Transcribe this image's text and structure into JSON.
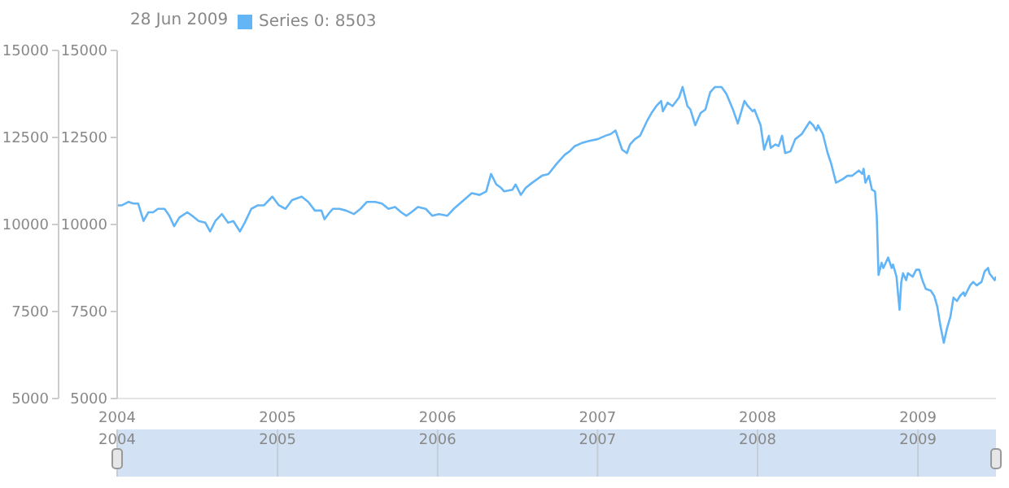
{
  "chart_data": {
    "type": "line",
    "legend_title": "28 Jun 2009",
    "legend": "top left",
    "xlim": [
      "2004-01-01",
      "2009-06-28"
    ],
    "xticks": [
      "2004",
      "2005",
      "2006",
      "2007",
      "2008",
      "2009"
    ],
    "x2lim": [
      "2004-01-01",
      "2009-06-28"
    ],
    "x2ticks": [
      "2004",
      "2005",
      "2006",
      "2007",
      "2008",
      "2009"
    ],
    "ylim": [
      5000,
      15000
    ],
    "yticks": [
      5000,
      7500,
      10000,
      12500,
      15000
    ],
    "y2lim": [
      5000,
      15000
    ],
    "y2ticks": [
      5000,
      7500,
      10000,
      12500,
      15000
    ],
    "x": [
      "2004-01-01",
      "2004-01-12",
      "2004-01-27",
      "2004-02-07",
      "2004-02-18",
      "2004-03-01",
      "2004-03-12",
      "2004-03-23",
      "2004-04-03",
      "2004-04-18",
      "2004-04-29",
      "2004-05-10",
      "2004-05-22",
      "2004-06-09",
      "2004-06-20",
      "2004-07-05",
      "2004-07-20",
      "2004-07-31",
      "2004-08-12",
      "2004-08-27",
      "2004-09-10",
      "2004-09-22",
      "2004-10-07",
      "2004-10-18",
      "2004-11-02",
      "2004-11-17",
      "2004-12-01",
      "2004-12-20",
      "2005-01-04",
      "2005-01-19",
      "2005-02-03",
      "2005-02-25",
      "2005-03-12",
      "2005-03-27",
      "2005-04-11",
      "2005-04-18",
      "2005-04-30",
      "2005-05-07",
      "2005-05-22",
      "2005-06-06",
      "2005-06-24",
      "2005-07-09",
      "2005-07-24",
      "2005-08-12",
      "2005-08-27",
      "2005-09-11",
      "2005-09-26",
      "2005-10-10",
      "2005-10-22",
      "2005-11-02",
      "2005-11-17",
      "2005-12-05",
      "2005-12-20",
      "2006-01-04",
      "2006-01-23",
      "2006-02-07",
      "2006-02-25",
      "2006-03-20",
      "2006-04-07",
      "2006-04-22",
      "2006-05-03",
      "2006-05-15",
      "2006-05-26",
      "2006-06-02",
      "2006-06-21",
      "2006-06-28",
      "2006-07-10",
      "2006-07-21",
      "2006-08-05",
      "2006-08-16",
      "2006-08-27",
      "2006-09-11",
      "2006-09-30",
      "2006-10-18",
      "2006-10-29",
      "2006-11-10",
      "2006-11-28",
      "2006-12-13",
      "2007-01-01",
      "2007-01-19",
      "2007-01-31",
      "2007-02-11",
      "2007-02-26",
      "2007-03-09",
      "2007-03-16",
      "2007-03-27",
      "2007-04-08",
      "2007-04-23",
      "2007-05-04",
      "2007-05-15",
      "2007-05-26",
      "2007-05-30",
      "2007-06-10",
      "2007-06-21",
      "2007-07-06",
      "2007-07-14",
      "2007-07-25",
      "2007-08-01",
      "2007-08-12",
      "2007-08-24",
      "2007-09-04",
      "2007-09-15",
      "2007-09-26",
      "2007-10-11",
      "2007-10-22",
      "2007-11-06",
      "2007-11-17",
      "2007-12-02",
      "2007-12-10",
      "2007-12-21",
      "2007-12-25",
      "2008-01-08",
      "2008-01-16",
      "2008-01-27",
      "2008-01-31",
      "2008-02-11",
      "2008-02-18",
      "2008-02-26",
      "2008-03-04",
      "2008-03-16",
      "2008-03-27",
      "2008-04-11",
      "2008-04-29",
      "2008-05-07",
      "2008-05-14",
      "2008-05-18",
      "2008-05-29",
      "2008-06-09",
      "2008-06-17",
      "2008-06-28",
      "2008-07-13",
      "2008-07-24",
      "2008-08-04",
      "2008-08-19",
      "2008-08-27",
      "2008-08-30",
      "2008-09-03",
      "2008-09-11",
      "2008-09-18",
      "2008-09-25",
      "2008-09-29",
      "2008-10-03",
      "2008-10-10",
      "2008-10-14",
      "2008-10-25",
      "2008-11-02",
      "2008-11-05",
      "2008-11-13",
      "2008-11-20",
      "2008-11-24",
      "2008-11-28",
      "2008-12-05",
      "2008-12-09",
      "2008-12-20",
      "2008-12-28",
      "2009-01-04",
      "2009-01-11",
      "2009-01-19",
      "2009-01-30",
      "2009-02-07",
      "2009-02-14",
      "2009-02-21",
      "2009-03-01",
      "2009-03-08",
      "2009-03-16",
      "2009-03-23",
      "2009-03-31",
      "2009-04-07",
      "2009-04-15",
      "2009-04-18",
      "2009-04-30",
      "2009-05-07",
      "2009-05-15",
      "2009-05-26",
      "2009-06-02",
      "2009-06-10",
      "2009-06-13",
      "2009-06-25",
      "2009-06-28"
    ],
    "series": [
      {
        "name": "Series 0: 8503",
        "color": "#64b5f6",
        "values": [
          10550,
          10550,
          10650,
          10600,
          10600,
          10100,
          10350,
          10350,
          10450,
          10450,
          10250,
          9950,
          10200,
          10350,
          10250,
          10100,
          10050,
          9800,
          10100,
          10300,
          10050,
          10100,
          9800,
          10050,
          10450,
          10550,
          10550,
          10800,
          10550,
          10450,
          10700,
          10800,
          10650,
          10400,
          10400,
          10150,
          10350,
          10450,
          10450,
          10400,
          10300,
          10450,
          10650,
          10650,
          10600,
          10450,
          10500,
          10350,
          10250,
          10350,
          10500,
          10450,
          10250,
          10300,
          10250,
          10450,
          10650,
          10900,
          10850,
          10950,
          11450,
          11150,
          11050,
          10950,
          11000,
          11150,
          10850,
          11050,
          11200,
          11300,
          11400,
          11450,
          11750,
          12000,
          12100,
          12250,
          12350,
          12400,
          12450,
          12550,
          12600,
          12700,
          12150,
          12050,
          12300,
          12450,
          12550,
          12950,
          13200,
          13400,
          13550,
          13250,
          13500,
          13400,
          13650,
          13950,
          13400,
          13300,
          12850,
          13200,
          13300,
          13800,
          13950,
          13950,
          13750,
          13300,
          12900,
          13550,
          13400,
          13250,
          13300,
          12850,
          12150,
          12550,
          12200,
          12300,
          12250,
          12550,
          12050,
          12100,
          12450,
          12600,
          12950,
          12850,
          12700,
          12850,
          12600,
          12050,
          11750,
          11200,
          11300,
          11400,
          11400,
          11550,
          11450,
          11600,
          11200,
          11400,
          11000,
          10950,
          10250,
          8550,
          8900,
          8750,
          9050,
          8750,
          8850,
          8500,
          7550,
          8350,
          8600,
          8400,
          8600,
          8500,
          8700,
          8700,
          8400,
          8150,
          8100,
          7950,
          7650,
          7100,
          6600,
          7000,
          7350,
          7900,
          7800,
          7950,
          8050,
          7950,
          8250,
          8350,
          8250,
          8350,
          8650,
          8750,
          8600,
          8400,
          8503
        ]
      }
    ]
  }
}
